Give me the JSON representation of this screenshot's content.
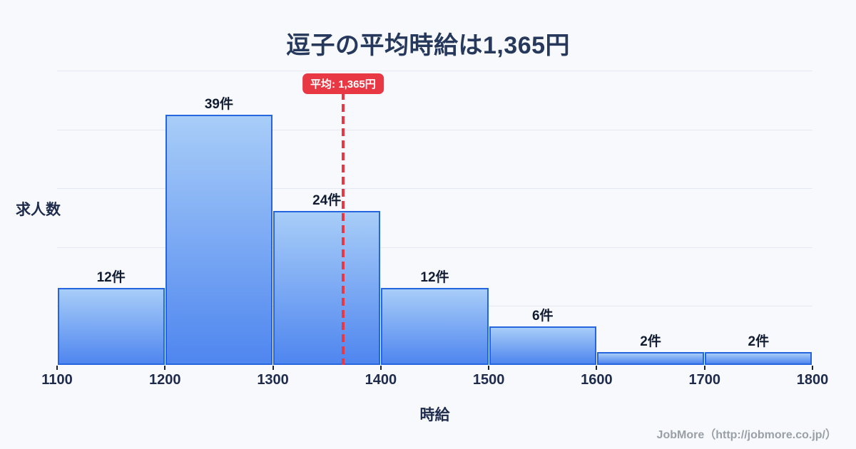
{
  "title": "逗子の平均時給は1,365円",
  "chart_data": {
    "type": "bar",
    "subtype": "histogram",
    "title": "逗子の平均時給は1,365円",
    "xlabel": "時給",
    "ylabel": "求人数",
    "bin_edges": [
      1100,
      1200,
      1300,
      1400,
      1500,
      1600,
      1700,
      1800
    ],
    "x_tick_labels": [
      "1100",
      "1200",
      "1300",
      "1400",
      "1500",
      "1600",
      "1700",
      "1800"
    ],
    "categories": [
      "1100-1200",
      "1200-1300",
      "1300-1400",
      "1400-1500",
      "1500-1600",
      "1600-1700",
      "1700-1800"
    ],
    "values": [
      12,
      39,
      24,
      12,
      6,
      2,
      2
    ],
    "bar_labels": [
      "12件",
      "39件",
      "24件",
      "12件",
      "6件",
      "2件",
      "2件"
    ],
    "average": 1365,
    "average_label": "平均: 1,365円",
    "xlim": [
      1100,
      1800
    ],
    "ylim": [
      0,
      46
    ],
    "grid": "horizontal",
    "legend": "none"
  },
  "footer": {
    "credit": "JobMore（http://jobmore.co.jp/）"
  },
  "colors": {
    "background": "#f7f9fc",
    "title_text": "#26395c",
    "axis_text": "#1e2b4d",
    "bar_label_text": "#111c33",
    "bar_fill_top": "#a8cdf8",
    "bar_fill_bottom": "#4f86ef",
    "bar_border": "#2565dd",
    "average_red": "#e83844",
    "grid_line": "#e3e8f1",
    "tick_mark": "#1a2433",
    "footer_text": "#9aa0a8"
  }
}
